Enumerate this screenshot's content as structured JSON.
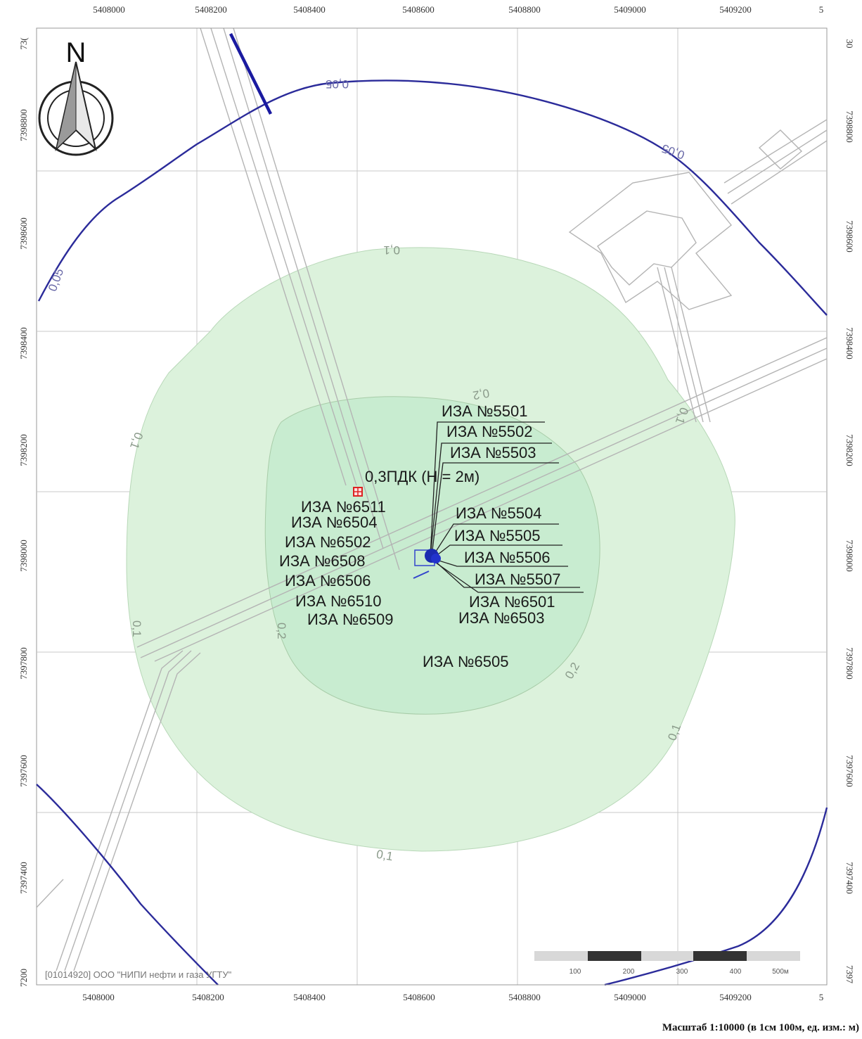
{
  "map": {
    "x_ticks": [
      "5408000",
      "5408200",
      "5408400",
      "5408600",
      "5408800",
      "5409000",
      "5409200",
      "5"
    ],
    "y_ticks": [
      "7398800",
      "7398600",
      "7398400",
      "7398200",
      "7398000",
      "7397800",
      "7397600",
      "7397400"
    ],
    "y_ticks_left_corner_top": "73(",
    "y_ticks_right_corner_top": "30",
    "y_tick_left_bottom": "7200",
    "y_tick_right_bottom": "7397",
    "north_label": "N",
    "point_label": "0,3ПДК (Н = 2м)",
    "sources_right": [
      "ИЗА №5501",
      "ИЗА №5502",
      "ИЗА №5503",
      "ИЗА №5504",
      "ИЗА №5505",
      "ИЗА №5506",
      "ИЗА №5507",
      "ИЗА №6501",
      "ИЗА №6503"
    ],
    "sources_left": [
      "ИЗА №6511",
      "ИЗА №6504",
      "ИЗА №6502",
      "ИЗА №6508",
      "ИЗА №6506",
      "ИЗА №6510",
      "ИЗА №6509"
    ],
    "source_bottom": "ИЗА №6505",
    "contour_labels": {
      "c005_top": "0,05",
      "c005_right": "0,05",
      "c005_left": "0,05",
      "c01_top": "0,1",
      "c01_left": "0,1",
      "c01_right": "0,1",
      "c01_bottom": "0,1",
      "c01_lower_left": "0,1",
      "c02_left": "0,2",
      "c02_right": "0,2",
      "c02_top": "0,2",
      "c01_right_upper": "0,1"
    },
    "organization": "[01014920] ООО \"НИПИ нефти и газа УГТУ\"",
    "scale_bar_labels": [
      "100",
      "200",
      "300",
      "400",
      "500м"
    ],
    "scale_caption": "Масштаб 1:10000 (в 1см 100м, ед. изм.: м)"
  },
  "colors": {
    "zone_outer": "#dcf2dc",
    "zone_inner": "#c8ecd0",
    "contour_blue": "#2b2b9a",
    "grid": "#c8c8c8",
    "road": "#b4b4b4"
  }
}
